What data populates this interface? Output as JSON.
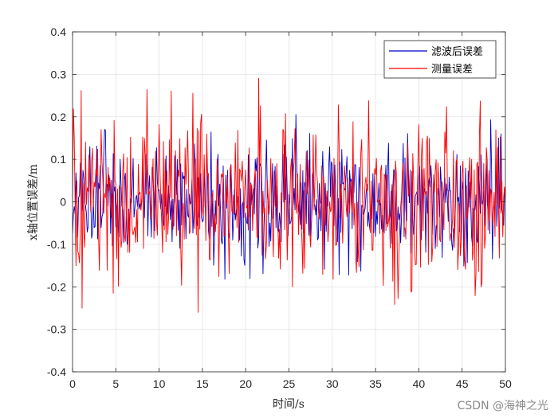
{
  "chart_data": {
    "type": "line",
    "title": "",
    "xlabel": "时间/s",
    "ylabel": "x轴位置误差/m",
    "xlim": [
      0,
      50
    ],
    "ylim": [
      -0.4,
      0.4
    ],
    "x_ticks": [
      "0",
      "5",
      "10",
      "15",
      "20",
      "25",
      "30",
      "35",
      "40",
      "45",
      "50"
    ],
    "y_ticks": [
      "-0.4",
      "-0.3",
      "-0.2",
      "-0.1",
      "0",
      "0.1",
      "0.2",
      "0.3",
      "0.4"
    ],
    "grid": true,
    "legend_position": "top-right",
    "series": [
      {
        "name": "滤波后误差",
        "color": "#0000cc",
        "x_range": [
          0,
          50
        ],
        "sample_step": 0.1,
        "approx_std": 0.07,
        "approx_range": [
          -0.26,
          0.26
        ]
      },
      {
        "name": "测量误差",
        "color": "#ff0000",
        "x_range": [
          0,
          50
        ],
        "sample_step": 0.1,
        "approx_std": 0.1,
        "approx_range": [
          -0.33,
          0.36
        ]
      }
    ]
  },
  "watermark": "CSDN @海神之光"
}
